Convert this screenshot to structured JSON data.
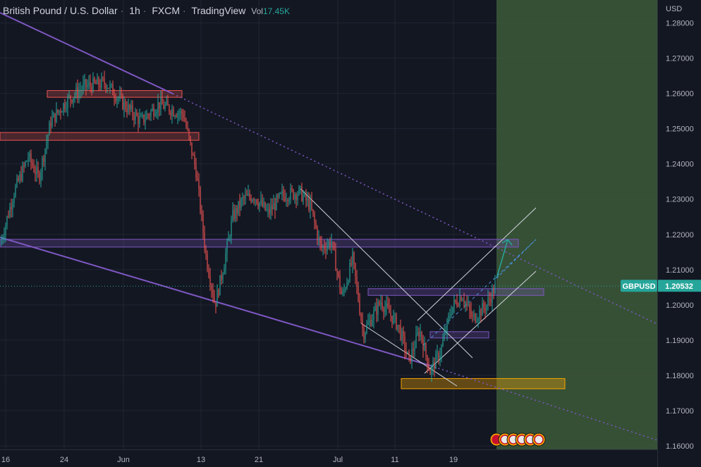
{
  "header": {
    "symbol_name": "British Pound / U.S. Dollar",
    "interval": "1h",
    "exchange": "FXCM",
    "source": "TradingView",
    "volume_label": "Vol",
    "volume_value": "17.45K"
  },
  "colors": {
    "background": "#131722",
    "grid": "#1f2433",
    "up_candle": "#26a69a",
    "down_candle": "#ef5350",
    "trendline": "#7e57c2",
    "channel": "#d1d4dc",
    "projection_zone": "#3d5a3a",
    "resistance_zone": "#ef5350",
    "support_zone": "#f7a600",
    "price_label": "#26a69a"
  },
  "chart_data": {
    "type": "candlestick",
    "title": "British Pound / U.S. Dollar",
    "currency": "USD",
    "ylim": [
      1.154,
      1.2865
    ],
    "y_ticks": [
      "1.28000",
      "1.27000",
      "1.26000",
      "1.25000",
      "1.24000",
      "1.23000",
      "1.22000",
      "1.21000",
      "1.20000",
      "1.19000",
      "1.18000",
      "1.17000",
      "1.16000"
    ],
    "x_ticks": [
      "16",
      "24",
      "Jun",
      "13",
      "21",
      "Jul",
      "11",
      "19"
    ],
    "last_price": {
      "symbol": "GBPUSD",
      "value": "1.20532"
    },
    "grid": true,
    "price_path": [
      [
        0,
        1.217
      ],
      [
        20,
        1.232
      ],
      [
        40,
        1.242
      ],
      [
        55,
        1.236
      ],
      [
        72,
        1.252
      ],
      [
        95,
        1.258
      ],
      [
        120,
        1.262
      ],
      [
        150,
        1.263
      ],
      [
        175,
        1.257
      ],
      [
        200,
        1.252
      ],
      [
        225,
        1.257
      ],
      [
        260,
        1.254
      ],
      [
        278,
        1.238
      ],
      [
        292,
        1.214
      ],
      [
        305,
        1.2
      ],
      [
        318,
        1.212
      ],
      [
        330,
        1.225
      ],
      [
        345,
        1.23
      ],
      [
        360,
        1.231
      ],
      [
        380,
        1.226
      ],
      [
        400,
        1.231
      ],
      [
        425,
        1.232
      ],
      [
        440,
        1.228
      ],
      [
        455,
        1.216
      ],
      [
        470,
        1.218
      ],
      [
        485,
        1.202
      ],
      [
        500,
        1.213
      ],
      [
        515,
        1.192
      ],
      [
        540,
        1.201
      ],
      [
        565,
        1.194
      ],
      [
        580,
        1.184
      ],
      [
        595,
        1.193
      ],
      [
        610,
        1.181
      ],
      [
        625,
        1.187
      ],
      [
        640,
        1.199
      ],
      [
        655,
        1.203
      ],
      [
        670,
        1.196
      ],
      [
        690,
        1.2
      ],
      [
        703,
        1.2055
      ]
    ],
    "zones": [
      {
        "kind": "resistance",
        "y_range": [
          1.2595,
          1.2602
        ],
        "x_range": [
          67,
          258
        ]
      },
      {
        "kind": "resistance",
        "y_range": [
          1.2473,
          1.2483
        ],
        "x_range": [
          0,
          282
        ]
      },
      {
        "kind": "pivot",
        "y_range": [
          1.217,
          1.218
        ],
        "x_range": [
          0,
          735
        ]
      },
      {
        "kind": "pivot",
        "y_range": [
          1.2033,
          1.204
        ],
        "x_range": [
          522,
          771
        ]
      },
      {
        "kind": "pivot",
        "y_range": [
          1.1912,
          1.1918
        ],
        "x_range": [
          610,
          693
        ]
      },
      {
        "kind": "support",
        "y_range": [
          1.1768,
          1.1785
        ],
        "x_range": [
          569,
          801
        ]
      }
    ],
    "projection": {
      "x_start": 704,
      "x_end": 932,
      "direction": "up",
      "target": 1.216
    }
  }
}
